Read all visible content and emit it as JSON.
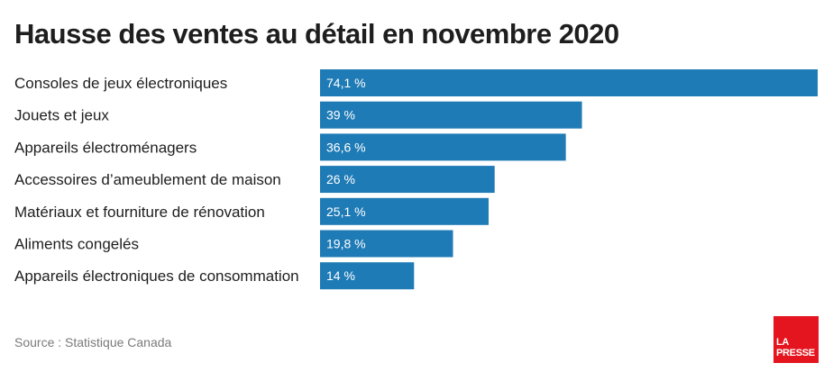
{
  "header": {
    "title": "Hausse des ventes au détail en novembre 2020"
  },
  "chart_data": {
    "type": "bar",
    "orientation": "horizontal",
    "title": "Hausse des ventes au détail en novembre 2020",
    "categories": [
      "Consoles de jeux électroniques",
      "Jouets et jeux",
      "Appareils électroménagers",
      "Accessoires d’ameublement de maison",
      "Matériaux et fourniture de rénovation",
      "Aliments congelés",
      "Appareils électroniques de consommation"
    ],
    "values": [
      74.1,
      39,
      36.6,
      26,
      25.1,
      19.8,
      14
    ],
    "value_labels": [
      "74,1 %",
      "39 %",
      "36,6 %",
      "26 %",
      "25,1 %",
      "19,8 %",
      "14 %"
    ],
    "xlim": [
      0,
      74.1
    ],
    "grid": false,
    "legend": "none",
    "bar_color": "#1f7bb6"
  },
  "footer": {
    "source": "Source : Statistique Canada"
  },
  "logo": {
    "line1": "LA",
    "line2": "PRESSE",
    "color": "#e4151f"
  }
}
